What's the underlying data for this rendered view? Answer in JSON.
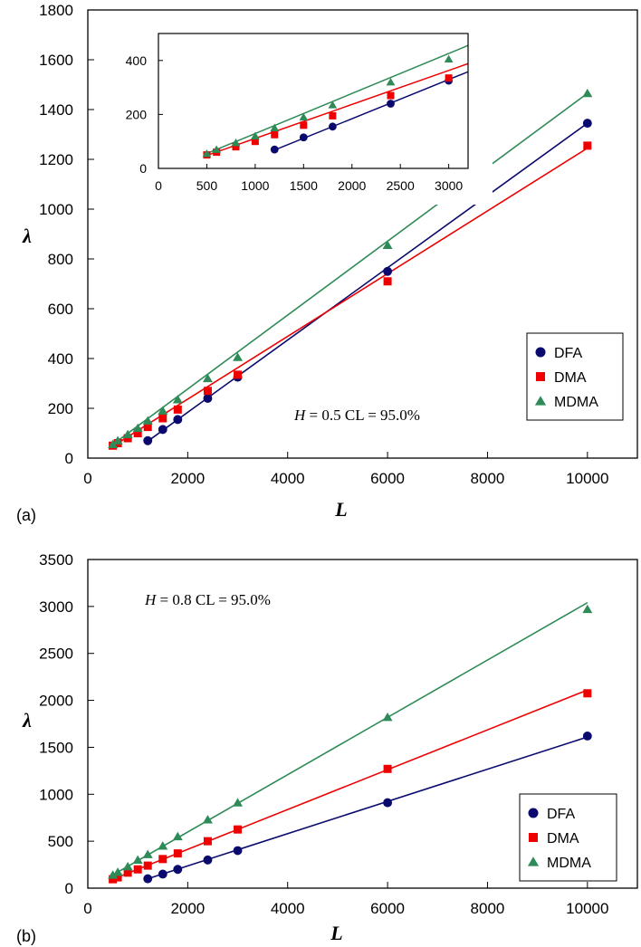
{
  "chart_data": [
    {
      "type": "scatter",
      "panel": "(a)",
      "annotation": {
        "var": "H",
        "text": " = 0.5 CL = 95.0%"
      },
      "xlabel": "L",
      "ylabel": "λ",
      "xlim": [
        0,
        11000
      ],
      "ylim": [
        0,
        1800
      ],
      "xticks": [
        0,
        2000,
        4000,
        6000,
        8000,
        10000
      ],
      "yticks": [
        0,
        200,
        400,
        600,
        800,
        1000,
        1200,
        1400,
        1600,
        1800
      ],
      "legend": "bottom-right",
      "series": [
        {
          "name": "DFA",
          "color": "#0a0a6e",
          "marker": "circle",
          "x": [
            1200,
            1500,
            1800,
            2400,
            3000,
            6000,
            10000
          ],
          "y": [
            70,
            115,
            155,
            240,
            325,
            750,
            1345
          ],
          "fit": [
            [
              1200,
              68
            ],
            [
              10000,
              1345
            ]
          ]
        },
        {
          "name": "DMA",
          "color": "#ee0000",
          "marker": "square",
          "x": [
            500,
            600,
            800,
            1000,
            1200,
            1500,
            1800,
            2400,
            3000,
            6000,
            10000
          ],
          "y": [
            50,
            60,
            80,
            100,
            125,
            160,
            195,
            270,
            335,
            710,
            1255
          ],
          "fit": [
            [
              500,
              48
            ],
            [
              10000,
              1245
            ]
          ]
        },
        {
          "name": "MDMA",
          "color": "#2e8b57",
          "marker": "triangle",
          "x": [
            500,
            600,
            800,
            1000,
            1200,
            1500,
            1800,
            2400,
            3000,
            6000,
            10000
          ],
          "y": [
            55,
            70,
            95,
            120,
            150,
            190,
            235,
            320,
            405,
            855,
            1465
          ],
          "fit": [
            [
              500,
              55
            ],
            [
              10000,
              1465
            ]
          ]
        }
      ],
      "inset": {
        "xlim": [
          0,
          3200
        ],
        "ylim": [
          0,
          500
        ],
        "xticks": [
          0,
          500,
          1000,
          1500,
          2000,
          2500,
          3000
        ],
        "yticks": [
          0,
          200,
          400
        ]
      }
    },
    {
      "type": "scatter",
      "panel": "(b)",
      "annotation": {
        "var": "H",
        "text": " = 0.8  CL = 95.0%"
      },
      "xlabel": "L",
      "ylabel": "λ",
      "xlim": [
        0,
        11000
      ],
      "ylim": [
        0,
        3500
      ],
      "xticks": [
        0,
        2000,
        4000,
        6000,
        8000,
        10000
      ],
      "yticks": [
        0,
        500,
        1000,
        1500,
        2000,
        2500,
        3000,
        3500
      ],
      "legend": "bottom-right",
      "series": [
        {
          "name": "DFA",
          "color": "#0a0a6e",
          "marker": "circle",
          "x": [
            1200,
            1500,
            1800,
            2400,
            3000,
            6000,
            10000
          ],
          "y": [
            100,
            150,
            200,
            300,
            400,
            910,
            1620
          ],
          "fit": [
            [
              1200,
              100
            ],
            [
              10000,
              1610
            ]
          ]
        },
        {
          "name": "DMA",
          "color": "#ee0000",
          "marker": "square",
          "x": [
            500,
            600,
            800,
            1000,
            1200,
            1500,
            1800,
            2400,
            3000,
            6000,
            10000
          ],
          "y": [
            95,
            115,
            165,
            200,
            240,
            310,
            370,
            500,
            625,
            1270,
            2075
          ],
          "fit": [
            [
              500,
              95
            ],
            [
              10000,
              2110
            ]
          ]
        },
        {
          "name": "MDMA",
          "color": "#2e8b57",
          "marker": "triangle",
          "x": [
            500,
            600,
            800,
            1000,
            1200,
            1500,
            1800,
            2400,
            3000,
            6000,
            10000
          ],
          "y": [
            140,
            170,
            230,
            300,
            360,
            450,
            550,
            730,
            910,
            1820,
            2970
          ],
          "fit": [
            [
              500,
              140
            ],
            [
              10000,
              3040
            ]
          ]
        }
      ]
    }
  ]
}
